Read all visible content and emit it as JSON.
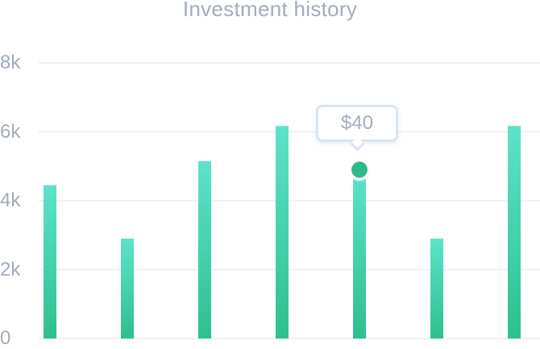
{
  "chart_data": {
    "type": "bar",
    "title": "Investment history",
    "categories": [
      "",
      "",
      "",
      "",
      "",
      "",
      ""
    ],
    "values": [
      4450,
      2900,
      5150,
      6170,
      4900,
      2900,
      6170
    ],
    "ylim": [
      0,
      8000
    ],
    "yticks": [
      {
        "value": 0,
        "label": "0"
      },
      {
        "value": 2000,
        "label": "2k"
      },
      {
        "value": 4000,
        "label": "4k"
      },
      {
        "value": 6000,
        "label": "6k"
      },
      {
        "value": 8000,
        "label": "8k"
      }
    ],
    "grid": true,
    "highlight": {
      "index": 4,
      "label": "$40"
    },
    "colors": {
      "bar_top": "#5de3c9",
      "bar_bottom": "#2ec08f",
      "marker": "#2dba8c",
      "grid": "#eef1f5",
      "text": "#a3acba"
    }
  }
}
